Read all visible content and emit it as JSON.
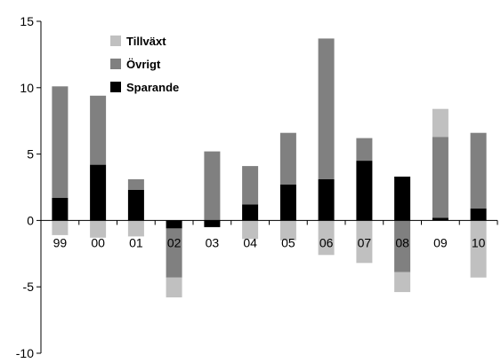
{
  "chart_data": {
    "type": "bar",
    "stacked": true,
    "title": "",
    "xlabel": "",
    "ylabel": "",
    "ylim": [
      -10,
      15
    ],
    "yticks": [
      15,
      10,
      5,
      0,
      -5,
      -10
    ],
    "ytick_labels": [
      "15",
      "10",
      "5",
      "0",
      "-5",
      "-10"
    ],
    "grid": false,
    "legend_position": "top-left",
    "categories": [
      "99",
      "00",
      "01",
      "02",
      "03",
      "04",
      "05",
      "06",
      "07",
      "08",
      "09",
      "10"
    ],
    "series": [
      {
        "name": "Sparande",
        "color": "#000000",
        "values": [
          1.7,
          4.2,
          2.3,
          -0.6,
          -0.5,
          1.2,
          2.7,
          3.1,
          4.5,
          3.3,
          0.2,
          0.9
        ]
      },
      {
        "name": "Övrigt",
        "color": "#808080",
        "values": [
          8.4,
          5.2,
          0.8,
          -3.7,
          5.2,
          2.9,
          3.9,
          10.6,
          1.7,
          -3.9,
          6.1,
          5.7
        ]
      },
      {
        "name": "Tillväxt",
        "color": "#c0c0c0",
        "values": [
          -1.1,
          -1.3,
          -1.2,
          -1.5,
          0.0,
          -1.4,
          -1.5,
          -2.6,
          -3.2,
          -1.5,
          2.1,
          -4.3
        ]
      }
    ],
    "legend_order": [
      "Tillväxt",
      "Övrigt",
      "Sparande"
    ]
  }
}
